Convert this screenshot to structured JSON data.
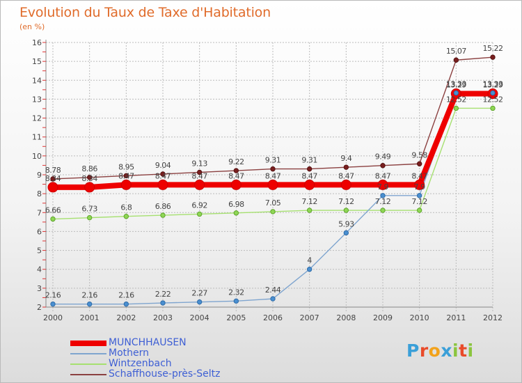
{
  "chart_data": {
    "type": "line",
    "title": "Evolution du Taux de Taxe d'Habitation",
    "subtitle": "(en %)",
    "xlabel": "",
    "ylabel": "",
    "ylim": [
      2,
      16
    ],
    "y_ticks": [
      "2",
      "3",
      "4",
      "5",
      "6",
      "7",
      "8",
      "9",
      "10",
      "11",
      "12",
      "13",
      "14",
      "15",
      "16"
    ],
    "categories": [
      "2000",
      "2001",
      "2002",
      "2003",
      "2004",
      "2005",
      "2006",
      "2007",
      "2008",
      "2009",
      "2010",
      "2011",
      "2012"
    ],
    "series": [
      {
        "name": "MUNCHHAUSEN",
        "color": "#ee0000",
        "values": [
          8.34,
          8.34,
          8.47,
          8.47,
          8.47,
          8.47,
          8.47,
          8.47,
          8.47,
          8.47,
          8.47,
          13.29,
          13.29
        ],
        "labels": [
          "8.34",
          "8.34",
          "8.47",
          "8.47",
          "8.47",
          "8.47",
          "8.47",
          "8.47",
          "8.47",
          "8.47",
          "8.47",
          "13.29",
          "13.29"
        ]
      },
      {
        "name": "Mothern",
        "color": "#7fa5cf",
        "values": [
          2.16,
          2.16,
          2.16,
          2.22,
          2.27,
          2.32,
          2.44,
          4,
          5.93,
          7.9,
          7.9,
          13.33,
          13.33
        ],
        "labels": [
          "2.16",
          "2.16",
          "2.16",
          "2.22",
          "2.27",
          "2.32",
          "2.44",
          "4",
          "5.93",
          "7.9",
          "7.9",
          "13.33",
          "13.33"
        ]
      },
      {
        "name": "Wintzenbach",
        "color": "#a6e070",
        "values": [
          6.66,
          6.73,
          6.8,
          6.86,
          6.92,
          6.98,
          7.05,
          7.12,
          7.12,
          7.12,
          7.12,
          12.52,
          12.52
        ],
        "labels": [
          "6.66",
          "6.73",
          "6.8",
          "6.86",
          "6.92",
          "6.98",
          "7.05",
          "7.12",
          "7.12",
          "7.12",
          "7.12",
          "12.52",
          "12.52"
        ]
      },
      {
        "name": "Schaffhouse-près-Seltz",
        "color": "#8b4040",
        "values": [
          8.78,
          8.86,
          8.95,
          9.04,
          9.13,
          9.22,
          9.31,
          9.31,
          9.4,
          9.49,
          9.58,
          15.07,
          15.22
        ],
        "labels": [
          "8.78",
          "8.86",
          "8.95",
          "9.04",
          "9.13",
          "9.22",
          "9.31",
          "9.31",
          "9.4",
          "9.49",
          "9.58",
          "15.07",
          "15.22"
        ]
      }
    ],
    "legend": [
      "MUNCHHAUSEN",
      "Mothern",
      "Wintzenbach",
      "Schaffhouse-près-Seltz"
    ]
  },
  "logo": {
    "letters": [
      "P",
      "r",
      "o",
      "x",
      "i",
      "t",
      "i"
    ],
    "colors": [
      "#3a9fd8",
      "#e94b2a",
      "#f2a21b",
      "#3a9fd8",
      "#8bc53f",
      "#e94b2a",
      "#8bc53f"
    ]
  }
}
